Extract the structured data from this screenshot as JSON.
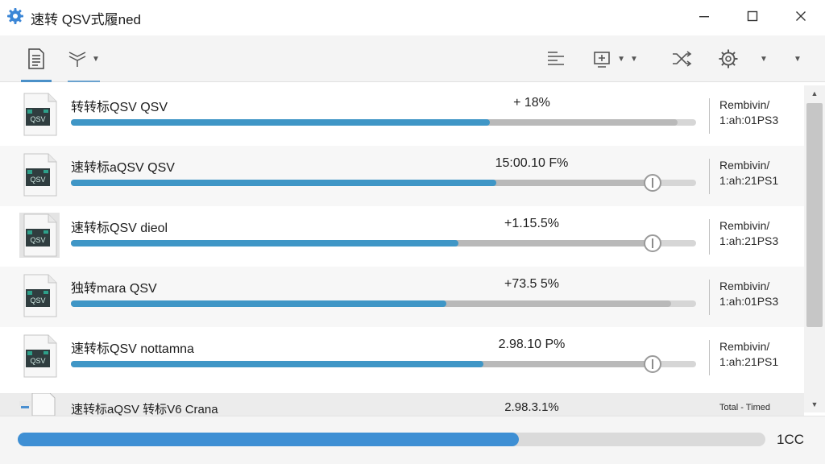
{
  "window": {
    "title": "速转 QSV式履ned",
    "controls": [
      "minimize",
      "maximize",
      "close"
    ]
  },
  "toolbar": {
    "left": [
      {
        "icon": "document-list-icon",
        "active": true
      },
      {
        "icon": "filter-icon",
        "has_dropdown": true
      }
    ],
    "right": [
      {
        "icon": "align-lines-icon"
      },
      {
        "icon": "output-device-icon",
        "has_dropdown": true
      },
      {
        "icon": "shuffle-icon"
      },
      {
        "icon": "gear-icon",
        "has_dropdown": true
      },
      {
        "icon": "overflow-dropdown-icon"
      }
    ]
  },
  "rows": [
    {
      "name": "转转标QSV QSV",
      "percent_text": "+ 18%",
      "side1": "Rembivin/",
      "side2": "1:ah:01PS3",
      "progress_blue": 0.67,
      "progress_gray": 0.97,
      "slider": false
    },
    {
      "name": "速转标aQSV QSV",
      "percent_text": "15:00.10 F%",
      "side1": "Rembivin/",
      "side2": "1:ah:21PS1",
      "progress_blue": 0.68,
      "progress_gray": 0.93,
      "slider": true,
      "slider_pos": 0.93
    },
    {
      "name": "速转标QSV dieol",
      "percent_text": "+1.15.5%",
      "side1": "Rembivin/",
      "side2": "1:ah:21PS3",
      "progress_blue": 0.62,
      "progress_gray": 0.93,
      "slider": true,
      "slider_pos": 0.93
    },
    {
      "name": "独转mara QSV",
      "percent_text": "+73.5 5%",
      "side1": "Rembivin/",
      "side2": "1:ah:01PS3",
      "progress_blue": 0.6,
      "progress_gray": 0.96,
      "slider": false
    },
    {
      "name": "速转标QSV nottamna",
      "percent_text": "2.98.10 P%",
      "side1": "Rembivin/",
      "side2": "1:ah:21PS1",
      "progress_blue": 0.66,
      "progress_gray": 0.93,
      "slider": true,
      "slider_pos": 0.93
    }
  ],
  "partial_row": {
    "name": "速转标aQSV 转标V6 Crana",
    "percent_text": "2.98.3.1%",
    "side": "Total - Timed"
  },
  "overall": {
    "progress": 0.67,
    "label": "1CC"
  },
  "colors": {
    "accent": "#3f96c6",
    "overall_fill": "#3e8fd4",
    "track": "#d6d6d6"
  }
}
